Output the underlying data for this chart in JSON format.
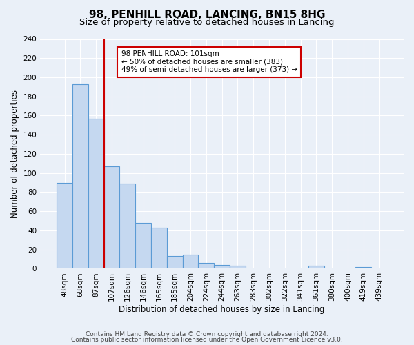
{
  "title": "98, PENHILL ROAD, LANCING, BN15 8HG",
  "subtitle": "Size of property relative to detached houses in Lancing",
  "xlabel": "Distribution of detached houses by size in Lancing",
  "ylabel": "Number of detached properties",
  "bin_labels": [
    "48sqm",
    "68sqm",
    "87sqm",
    "107sqm",
    "126sqm",
    "146sqm",
    "165sqm",
    "185sqm",
    "204sqm",
    "224sqm",
    "244sqm",
    "263sqm",
    "283sqm",
    "302sqm",
    "322sqm",
    "341sqm",
    "361sqm",
    "380sqm",
    "400sqm",
    "419sqm",
    "439sqm"
  ],
  "bar_values": [
    90,
    193,
    157,
    107,
    89,
    48,
    43,
    13,
    15,
    6,
    4,
    3,
    0,
    0,
    0,
    0,
    3,
    0,
    0,
    2,
    0
  ],
  "bar_color": "#c5d8f0",
  "bar_edge_color": "#5b9bd5",
  "vline_x_index": 3,
  "vline_color": "#cc0000",
  "annotation_text": "98 PENHILL ROAD: 101sqm\n← 50% of detached houses are smaller (383)\n49% of semi-detached houses are larger (373) →",
  "annotation_box_edge_color": "#cc0000",
  "annotation_box_face_color": "#ffffff",
  "ylim": [
    0,
    240
  ],
  "yticks": [
    0,
    20,
    40,
    60,
    80,
    100,
    120,
    140,
    160,
    180,
    200,
    220,
    240
  ],
  "footer_line1": "Contains HM Land Registry data © Crown copyright and database right 2024.",
  "footer_line2": "Contains public sector information licensed under the Open Government Licence v3.0.",
  "bg_color": "#eaf0f8",
  "plot_bg_color": "#eaf0f8",
  "grid_color": "#ffffff",
  "title_fontsize": 11,
  "subtitle_fontsize": 9.5,
  "axis_label_fontsize": 8.5,
  "tick_fontsize": 7.5,
  "footer_fontsize": 6.5
}
